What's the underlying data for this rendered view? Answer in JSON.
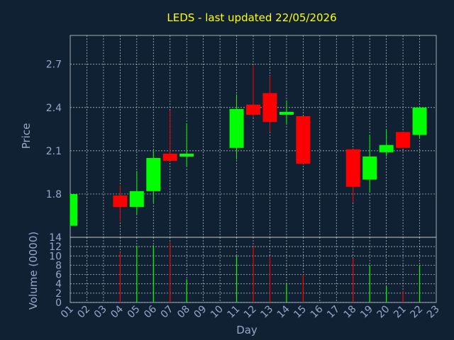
{
  "chart_data": {
    "type": "candlestick",
    "title": "LEDS - last updated 22/05/2026",
    "xlabel": "Day",
    "categories": [
      "01",
      "02",
      "03",
      "04",
      "05",
      "06",
      "07",
      "08",
      "09",
      "10",
      "11",
      "12",
      "13",
      "14",
      "15",
      "16",
      "17",
      "18",
      "19",
      "20",
      "21",
      "22",
      "23"
    ],
    "price_panel": {
      "ylabel": "Price",
      "ylim": [
        1.5,
        2.9
      ],
      "yticks": [
        1.8,
        2.1,
        2.4,
        2.7
      ],
      "candles": [
        {
          "day": "01",
          "open": 1.58,
          "close": 1.8,
          "high": 1.8,
          "low": 1.58
        },
        {
          "day": "04",
          "open": 1.79,
          "close": 1.71,
          "high": 1.86,
          "low": 1.61
        },
        {
          "day": "05",
          "open": 1.71,
          "close": 1.82,
          "high": 1.96,
          "low": 1.66
        },
        {
          "day": "06",
          "open": 1.82,
          "close": 2.05,
          "high": 2.1,
          "low": 1.74
        },
        {
          "day": "07",
          "open": 2.08,
          "close": 2.03,
          "high": 2.38,
          "low": 2.03
        },
        {
          "day": "08",
          "open": 2.06,
          "close": 2.08,
          "high": 2.29,
          "low": 1.99
        },
        {
          "day": "11",
          "open": 2.12,
          "close": 2.39,
          "high": 2.49,
          "low": 2.04
        },
        {
          "day": "12",
          "open": 2.42,
          "close": 2.35,
          "high": 2.69,
          "low": 2.33
        },
        {
          "day": "13",
          "open": 2.5,
          "close": 2.3,
          "high": 2.62,
          "low": 2.23
        },
        {
          "day": "14",
          "open": 2.35,
          "close": 2.37,
          "high": 2.45,
          "low": 2.28
        },
        {
          "day": "15",
          "open": 2.34,
          "close": 2.01,
          "high": 2.34,
          "low": 2.01
        },
        {
          "day": "18",
          "open": 2.11,
          "close": 1.85,
          "high": 2.11,
          "low": 1.74
        },
        {
          "day": "19",
          "open": 1.9,
          "close": 2.06,
          "high": 2.21,
          "low": 1.81
        },
        {
          "day": "20",
          "open": 2.09,
          "close": 2.14,
          "high": 2.25,
          "low": 2.06
        },
        {
          "day": "21",
          "open": 2.23,
          "close": 2.12,
          "high": 2.23,
          "low": 2.12
        },
        {
          "day": "22",
          "open": 2.21,
          "close": 2.4,
          "high": 2.4,
          "low": 2.19
        }
      ]
    },
    "volume_panel": {
      "ylabel": "Volume (0000)",
      "ylim": [
        0,
        14
      ],
      "yticks": [
        0,
        2,
        4,
        6,
        8,
        10,
        12,
        14
      ],
      "bars": [
        {
          "day": "04",
          "value": 10.8,
          "direction": "down"
        },
        {
          "day": "05",
          "value": 12.2,
          "direction": "up"
        },
        {
          "day": "06",
          "value": 12.3,
          "direction": "up"
        },
        {
          "day": "07",
          "value": 13.0,
          "direction": "down"
        },
        {
          "day": "08",
          "value": 5.0,
          "direction": "up"
        },
        {
          "day": "11",
          "value": 10.0,
          "direction": "up"
        },
        {
          "day": "12",
          "value": 12.0,
          "direction": "down"
        },
        {
          "day": "13",
          "value": 9.8,
          "direction": "down"
        },
        {
          "day": "14",
          "value": 4.0,
          "direction": "up"
        },
        {
          "day": "15",
          "value": 6.0,
          "direction": "down"
        },
        {
          "day": "18",
          "value": 9.5,
          "direction": "down"
        },
        {
          "day": "19",
          "value": 8.0,
          "direction": "up"
        },
        {
          "day": "20",
          "value": 3.5,
          "direction": "up"
        },
        {
          "day": "21",
          "value": 2.5,
          "direction": "down"
        },
        {
          "day": "22",
          "value": 8.0,
          "direction": "up"
        }
      ]
    },
    "grid": true,
    "colors": {
      "background": "#0f2133",
      "up": "#00ff00",
      "down": "#ff0000",
      "grid": "#c8ccd0",
      "axis_text": "#9aa7c9",
      "title": "#ffff00"
    }
  }
}
